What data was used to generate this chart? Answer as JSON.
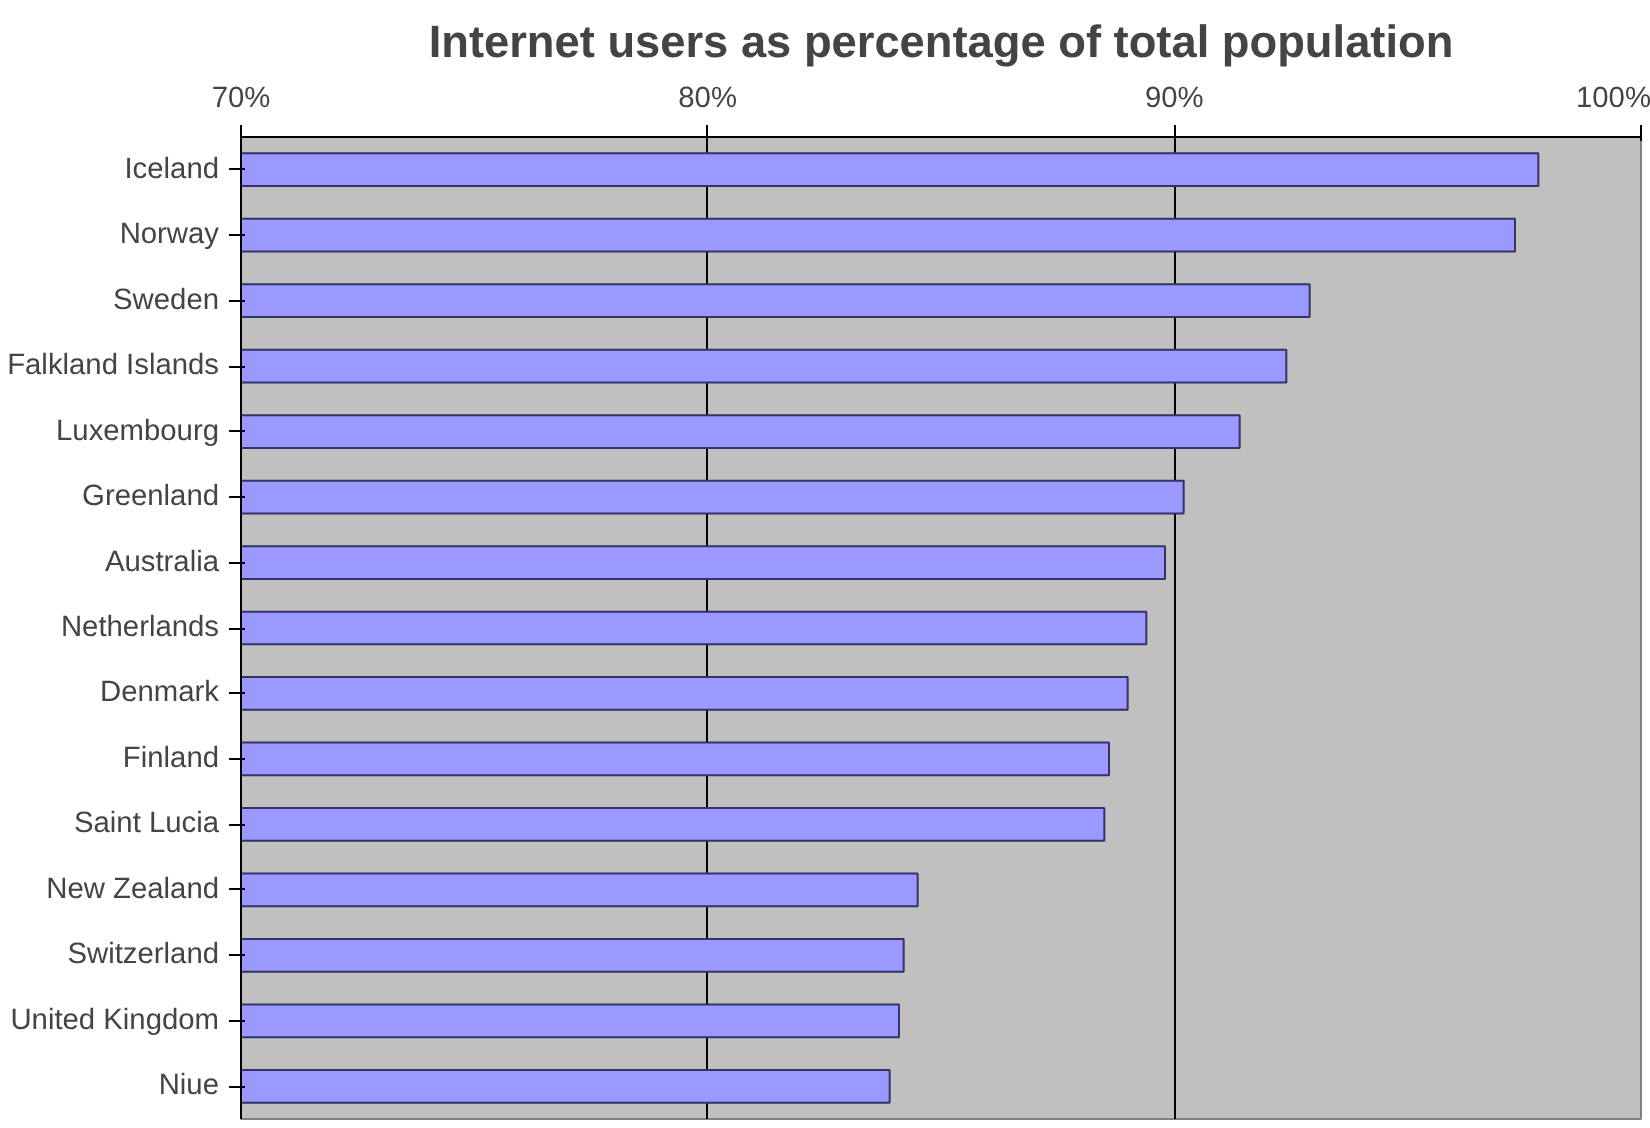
{
  "chart_data": {
    "type": "bar",
    "orientation": "horizontal",
    "title": "Internet users as percentage of total population",
    "categories": [
      "Iceland",
      "Norway",
      "Sweden",
      "Falkland Islands",
      "Luxembourg",
      "Greenland",
      "Australia",
      "Netherlands",
      "Denmark",
      "Finland",
      "Saint Lucia",
      "New Zealand",
      "Switzerland",
      "United Kingdom",
      "Niue"
    ],
    "values": [
      97.8,
      97.3,
      92.9,
      92.4,
      91.4,
      90.2,
      89.8,
      89.4,
      89.0,
      88.6,
      88.5,
      84.5,
      84.2,
      84.1,
      83.9
    ],
    "color": "#9999ff",
    "xlim": [
      70,
      100
    ],
    "xticks": [
      {
        "value": 70,
        "label": "70%"
      },
      {
        "value": 80,
        "label": "80%"
      },
      {
        "value": 90,
        "label": "90%"
      },
      {
        "value": 100,
        "label": "100%"
      }
    ],
    "grid": "x"
  }
}
